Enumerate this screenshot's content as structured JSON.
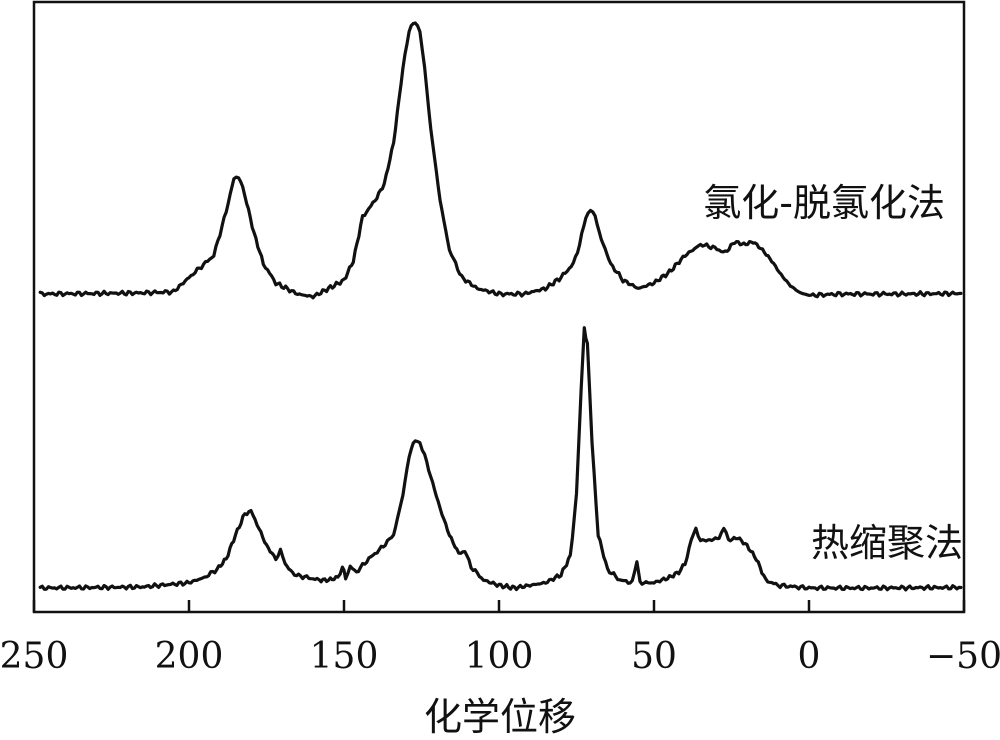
{
  "chart_data": {
    "type": "line",
    "title": "",
    "xlabel": "化学位移",
    "ylabel": "",
    "xlim": [
      250,
      -50
    ],
    "x_reversed": true,
    "xticks": [
      250,
      200,
      150,
      100,
      50,
      0,
      -50
    ],
    "xtick_labels": [
      "250",
      "200",
      "150",
      "100",
      "50",
      "0",
      "−50"
    ],
    "y_axis_visible": false,
    "grid": false,
    "series": [
      {
        "name": "氯化-脱氯化法",
        "baseline": 0,
        "points": [
          [
            248,
            0
          ],
          [
            230,
            0.002
          ],
          [
            215,
            0.004
          ],
          [
            205,
            0.008
          ],
          [
            200,
            0.06
          ],
          [
            196,
            0.1
          ],
          [
            192,
            0.14
          ],
          [
            188,
            0.3
          ],
          [
            185.5,
            0.42
          ],
          [
            184,
            0.43
          ],
          [
            182,
            0.36
          ],
          [
            179,
            0.22
          ],
          [
            176,
            0.11
          ],
          [
            172,
            0.04
          ],
          [
            165,
            0.0
          ],
          [
            160,
            -0.01
          ],
          [
            155,
            0.02
          ],
          [
            150,
            0.05
          ],
          [
            147,
            0.12
          ],
          [
            144,
            0.28
          ],
          [
            140,
            0.34
          ],
          [
            137,
            0.4
          ],
          [
            134,
            0.55
          ],
          [
            131,
            0.82
          ],
          [
            129,
            0.96
          ],
          [
            127,
            0.99
          ],
          [
            125.5,
            0.96
          ],
          [
            124,
            0.82
          ],
          [
            122,
            0.6
          ],
          [
            119,
            0.34
          ],
          [
            116,
            0.16
          ],
          [
            112,
            0.06
          ],
          [
            107,
            0.02
          ],
          [
            100,
            0.0
          ],
          [
            92,
            0.0
          ],
          [
            85,
            0.02
          ],
          [
            80,
            0.06
          ],
          [
            76,
            0.11
          ],
          [
            74,
            0.18
          ],
          [
            72,
            0.28
          ],
          [
            70.5,
            0.31
          ],
          [
            69,
            0.28
          ],
          [
            67,
            0.2
          ],
          [
            64,
            0.11
          ],
          [
            60,
            0.05
          ],
          [
            55,
            0.02
          ],
          [
            50,
            0.04
          ],
          [
            45,
            0.08
          ],
          [
            40,
            0.14
          ],
          [
            35,
            0.18
          ],
          [
            31,
            0.17
          ],
          [
            27,
            0.15
          ],
          [
            24,
            0.19
          ],
          [
            21,
            0.18
          ],
          [
            18,
            0.19
          ],
          [
            15,
            0.16
          ],
          [
            12,
            0.12
          ],
          [
            9,
            0.07
          ],
          [
            6,
            0.03
          ],
          [
            3,
            0.005
          ],
          [
            0,
            -0.005
          ],
          [
            -10,
            0.0
          ],
          [
            -30,
            0.0
          ],
          [
            -49,
            0.002
          ]
        ]
      },
      {
        "name": "热缩聚法",
        "baseline": 0,
        "points": [
          [
            248,
            0
          ],
          [
            230,
            0.002
          ],
          [
            215,
            0.004
          ],
          [
            200,
            0.02
          ],
          [
            195,
            0.04
          ],
          [
            191,
            0.07
          ],
          [
            188,
            0.11
          ],
          [
            185,
            0.2
          ],
          [
            182,
            0.28
          ],
          [
            180,
            0.29
          ],
          [
            178,
            0.24
          ],
          [
            175,
            0.16
          ],
          [
            172,
            0.11
          ],
          [
            170.5,
            0.14
          ],
          [
            169,
            0.09
          ],
          [
            166,
            0.05
          ],
          [
            162,
            0.04
          ],
          [
            158,
            0.03
          ],
          [
            155,
            0.03
          ],
          [
            152,
            0.04
          ],
          [
            150.5,
            0.08
          ],
          [
            149.5,
            0.04
          ],
          [
            148,
            0.08
          ],
          [
            146,
            0.06
          ],
          [
            142,
            0.11
          ],
          [
            138,
            0.15
          ],
          [
            134,
            0.2
          ],
          [
            131,
            0.35
          ],
          [
            129,
            0.5
          ],
          [
            127,
            0.56
          ],
          [
            125.5,
            0.55
          ],
          [
            124,
            0.5
          ],
          [
            122,
            0.42
          ],
          [
            119,
            0.3
          ],
          [
            116,
            0.2
          ],
          [
            113,
            0.13
          ],
          [
            111,
            0.14
          ],
          [
            109,
            0.08
          ],
          [
            105,
            0.03
          ],
          [
            100,
            0.01
          ],
          [
            95,
            0.0
          ],
          [
            90,
            0.01
          ],
          [
            85,
            0.02
          ],
          [
            80,
            0.05
          ],
          [
            77,
            0.12
          ],
          [
            75,
            0.35
          ],
          [
            73.5,
            0.75
          ],
          [
            72.5,
            0.98
          ],
          [
            71.5,
            0.92
          ],
          [
            70,
            0.55
          ],
          [
            68,
            0.2
          ],
          [
            65,
            0.07
          ],
          [
            61,
            0.03
          ],
          [
            57,
            0.02
          ],
          [
            55.5,
            0.1
          ],
          [
            54.5,
            0.02
          ],
          [
            50,
            0.02
          ],
          [
            45,
            0.04
          ],
          [
            42,
            0.06
          ],
          [
            40,
            0.09
          ],
          [
            38,
            0.18
          ],
          [
            36.5,
            0.22
          ],
          [
            35,
            0.18
          ],
          [
            32,
            0.18
          ],
          [
            29,
            0.19
          ],
          [
            27.5,
            0.23
          ],
          [
            26,
            0.18
          ],
          [
            23,
            0.19
          ],
          [
            20,
            0.16
          ],
          [
            17,
            0.11
          ],
          [
            14,
            0.03
          ],
          [
            10,
            0.01
          ],
          [
            0,
            0.0
          ],
          [
            -20,
            0.0
          ],
          [
            -49,
            0.002
          ]
        ]
      }
    ]
  }
}
